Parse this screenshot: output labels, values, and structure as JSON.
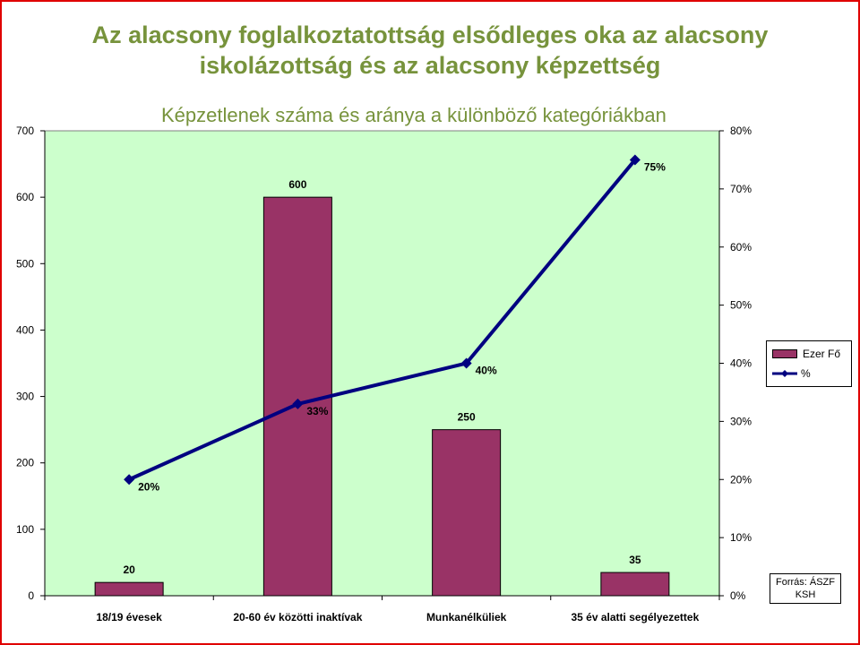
{
  "page": {
    "title_line1": "Az alacsony foglalkoztatottság elsődleges oka az alacsony",
    "title_line2": "iskolázottság és az alacsony képzettség",
    "source_line1": "Forrás: ÁSZF",
    "source_line2": "KSH"
  },
  "chart_data": {
    "type": "bar",
    "title": "Képzetlenek száma és aránya a különböző kategóriákban",
    "categories": [
      "18/19 évesek",
      "20-60 év közötti inaktívak",
      "Munkanélküliek",
      "35 év alatti segélyezettek"
    ],
    "series": [
      {
        "name": "Ezer Fő",
        "type": "bar",
        "axis": "left",
        "values": [
          20,
          600,
          250,
          35
        ],
        "labels": [
          "20",
          "600",
          "250",
          "35"
        ],
        "color": "#993366"
      },
      {
        "name": "%",
        "type": "line",
        "axis": "right",
        "values": [
          20,
          33,
          40,
          75
        ],
        "labels": [
          "20%",
          "33%",
          "40%",
          "75%"
        ],
        "color": "#000080"
      }
    ],
    "ylim": [
      0,
      700
    ],
    "y_ticks": [
      "0",
      "100",
      "200",
      "300",
      "400",
      "500",
      "600",
      "700"
    ],
    "y2lim": [
      0,
      80
    ],
    "y2_ticks": [
      "0%",
      "10%",
      "20%",
      "30%",
      "40%",
      "50%",
      "60%",
      "70%",
      "80%"
    ],
    "plot_background": "#ccffcc",
    "legend_position": "right",
    "grid": false
  }
}
